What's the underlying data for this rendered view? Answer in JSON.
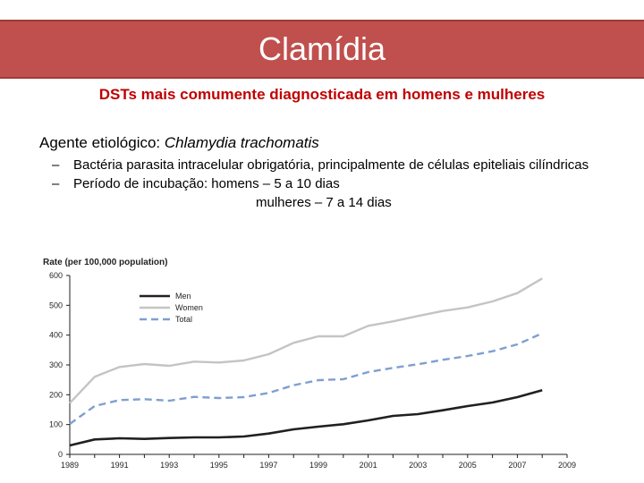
{
  "slide": {
    "title": "Clamídia",
    "subtitle": "DSTs mais comumente diagnosticada em homens e mulheres",
    "agent_label": "Agente etiológico: ",
    "agent_name": "Chlamydia trachomatis",
    "bullets": [
      "Bactéria parasita intracelular obrigatória, principalmente de células epiteliais cilíndricas",
      "Período de incubação: homens – 5 a 10 dias"
    ],
    "incubation_women": "mulheres – 7 a 14 dias",
    "dash": "–"
  },
  "chart_data": {
    "type": "line",
    "ylabel": "Rate (per 100,000 population)",
    "xlabel": "",
    "ylim": [
      0,
      600
    ],
    "xlim": [
      1989,
      2009
    ],
    "yticks": [
      0,
      100,
      200,
      300,
      400,
      500,
      600
    ],
    "xticks": [
      1989,
      1991,
      1993,
      1995,
      1997,
      1999,
      2001,
      2003,
      2005,
      2007,
      2009
    ],
    "x": [
      1989,
      1990,
      1991,
      1992,
      1993,
      1994,
      1995,
      1996,
      1997,
      1998,
      1999,
      2000,
      2001,
      2002,
      2003,
      2004,
      2005,
      2006,
      2007,
      2008
    ],
    "series": [
      {
        "name": "Men",
        "color": "#231f20",
        "style": "solid",
        "values": [
          30,
          50,
          54,
          52,
          55,
          57,
          57,
          60,
          70,
          84,
          93,
          101,
          114,
          129,
          135,
          148,
          162,
          174,
          192,
          215
        ]
      },
      {
        "name": "Women",
        "color": "#c4c4c4",
        "style": "solid",
        "values": [
          172,
          260,
          293,
          303,
          297,
          311,
          308,
          315,
          336,
          374,
          396,
          396,
          431,
          446,
          464,
          481,
          493,
          513,
          541,
          590
        ]
      },
      {
        "name": "Total",
        "color": "#7f9fd0",
        "style": "dashed",
        "values": [
          102,
          162,
          182,
          185,
          180,
          193,
          189,
          192,
          206,
          232,
          249,
          252,
          276,
          290,
          302,
          317,
          330,
          346,
          369,
          406
        ]
      }
    ],
    "legend": "top-left"
  }
}
